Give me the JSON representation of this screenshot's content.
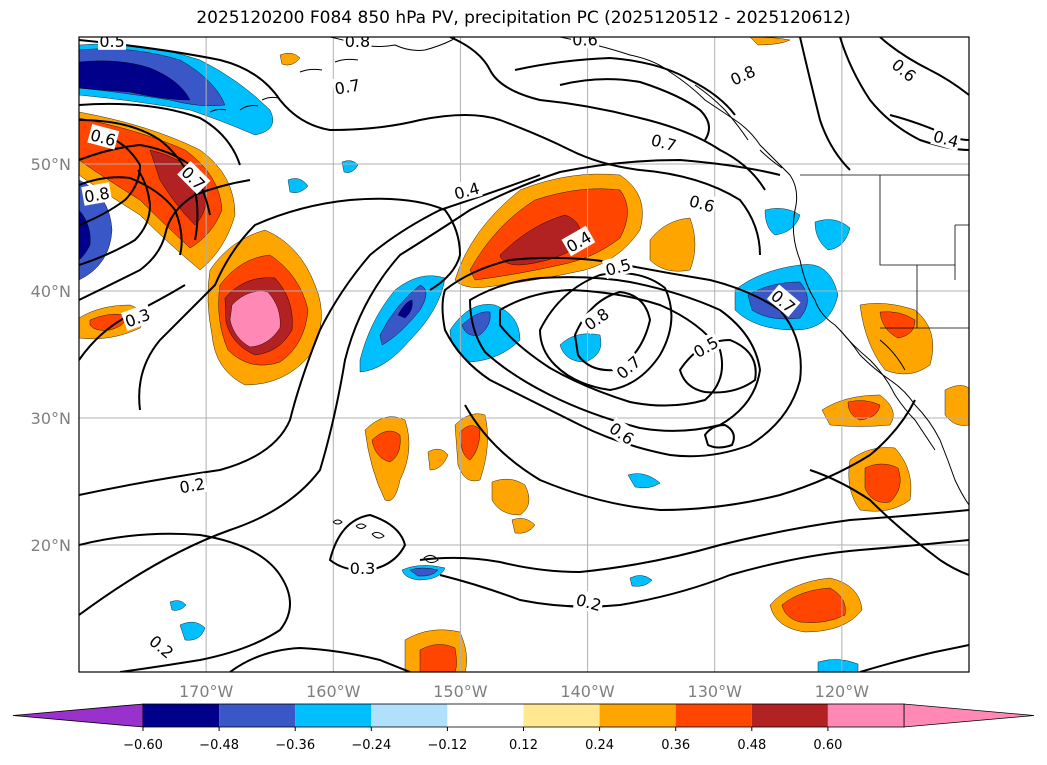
{
  "title": "2025120200 F084 850 hPa PV, precipitation PC (2025120512 - 2025120612)",
  "map": {
    "lat_range": [
      10,
      60
    ],
    "lon_range": [
      -180,
      -110
    ],
    "lat_ticks": [
      {
        "lat": 50,
        "label": "50°N"
      },
      {
        "lat": 40,
        "label": "40°N"
      },
      {
        "lat": 30,
        "label": "30°N"
      },
      {
        "lat": 20,
        "label": "20°N"
      }
    ],
    "lon_ticks": [
      {
        "lon": -170,
        "label": "170°W"
      },
      {
        "lon": -160,
        "label": "160°W"
      },
      {
        "lon": -150,
        "label": "150°W"
      },
      {
        "lon": -140,
        "label": "140°W"
      },
      {
        "lon": -130,
        "label": "130°W"
      },
      {
        "lon": -120,
        "label": "120°W"
      }
    ],
    "gridlines": true
  },
  "contour_labels": [
    {
      "text": "0.5",
      "lon": -177.4,
      "lat": 59.7,
      "angle": 0
    },
    {
      "text": "0.8",
      "lon": -158.1,
      "lat": 59.7,
      "angle": 0
    },
    {
      "text": "0.7",
      "lon": -158.9,
      "lat": 56.1,
      "angle": -10
    },
    {
      "text": "0.6",
      "lon": -140.2,
      "lat": 59.8,
      "angle": 0
    },
    {
      "text": "0.8",
      "lon": -127.8,
      "lat": 57.0,
      "angle": -25
    },
    {
      "text": "0.6",
      "lon": -115.1,
      "lat": 57.4,
      "angle": 40
    },
    {
      "text": "0.7",
      "lon": -134.0,
      "lat": 51.7,
      "angle": 15
    },
    {
      "text": "0.4",
      "lon": -111.8,
      "lat": 52.0,
      "angle": 15
    },
    {
      "text": "0.6",
      "lon": -178.1,
      "lat": 52.1,
      "angle": 15
    },
    {
      "text": "0.7",
      "lon": -171.0,
      "lat": 48.9,
      "angle": 45
    },
    {
      "text": "0.8",
      "lon": -178.6,
      "lat": 47.6,
      "angle": -10
    },
    {
      "text": "0.4",
      "lon": -149.5,
      "lat": 47.9,
      "angle": -15
    },
    {
      "text": "0.6",
      "lon": -131.0,
      "lat": 46.9,
      "angle": 15
    },
    {
      "text": "0.4",
      "lon": -140.7,
      "lat": 43.9,
      "angle": -30
    },
    {
      "text": "0.5",
      "lon": -137.6,
      "lat": 41.9,
      "angle": -15
    },
    {
      "text": "0.7",
      "lon": -124.6,
      "lat": 39.2,
      "angle": 40
    },
    {
      "text": "0.8",
      "lon": -139.3,
      "lat": 37.8,
      "angle": -35
    },
    {
      "text": "0.5",
      "lon": -130.7,
      "lat": 35.6,
      "angle": -30
    },
    {
      "text": "0.7",
      "lon": -136.8,
      "lat": 34.0,
      "angle": -40
    },
    {
      "text": "0.3",
      "lon": -175.4,
      "lat": 37.9,
      "angle": -20
    },
    {
      "text": "0.6",
      "lon": -137.3,
      "lat": 28.8,
      "angle": 35
    },
    {
      "text": "0.2",
      "lon": -171.1,
      "lat": 24.7,
      "angle": -10
    },
    {
      "text": "0.3",
      "lon": -157.7,
      "lat": 18.2,
      "angle": 0
    },
    {
      "text": "0.2",
      "lon": -139.9,
      "lat": 15.5,
      "angle": 15
    },
    {
      "text": "0.2",
      "lon": -173.5,
      "lat": 12.0,
      "angle": 40
    }
  ],
  "colorbar": {
    "levels": [
      -0.72,
      -0.6,
      -0.48,
      -0.36,
      -0.24,
      -0.12,
      0.12,
      0.24,
      0.36,
      0.48,
      0.6,
      0.72
    ],
    "tick_labels": [
      "−0.60",
      "−0.48",
      "−0.36",
      "−0.24",
      "−0.12",
      "0.12",
      "0.24",
      "0.36",
      "0.48",
      "0.60"
    ],
    "colors": [
      "#9932cc",
      "#00008b",
      "#3a57c8",
      "#00bfff",
      "#b0e0fa",
      "#ffffff",
      "#ffe88f",
      "#ffa500",
      "#ff4500",
      "#b22222",
      "#ff88b4",
      "#ff88b4"
    ],
    "extend": "both"
  },
  "fill_colors": {
    "neg1": "#00bfff",
    "neg2": "#3a57c8",
    "neg3": "#00008b",
    "pos1": "#ffa500",
    "pos2": "#ff4500",
    "pos3": "#b22222",
    "pos4": "#ff88b4"
  }
}
